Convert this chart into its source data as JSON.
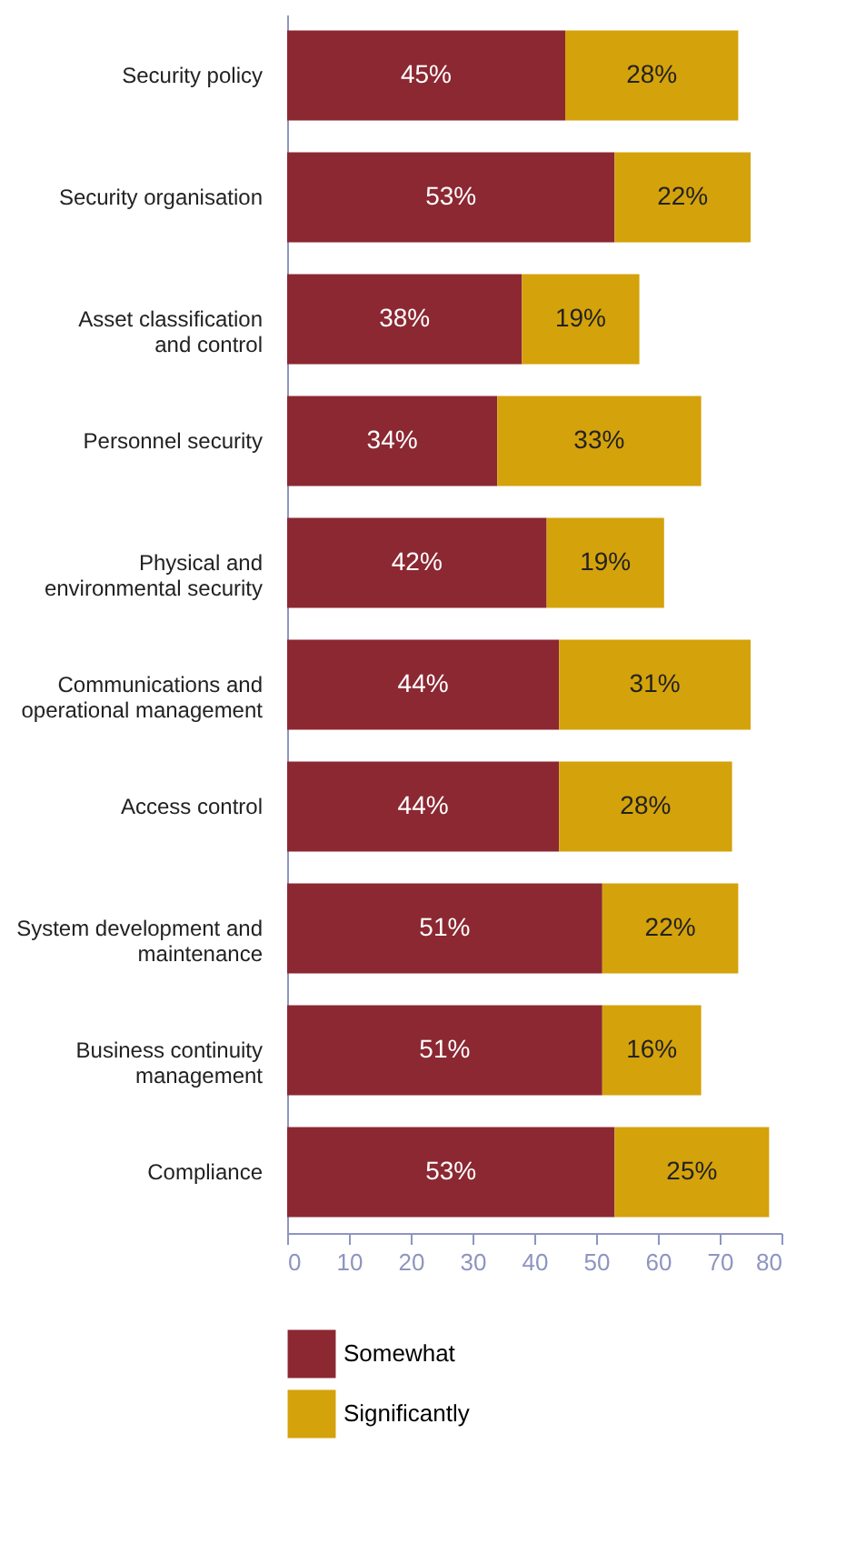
{
  "chart_data": {
    "type": "bar",
    "orientation": "horizontal",
    "stacked": true,
    "categories": [
      "Security policy",
      "Security organisation",
      "Asset classification and control",
      "Personnel security",
      "Physical and environmental security",
      "Communications and operational management",
      "Access control",
      "System development and maintenance",
      "Business continuity management",
      "Compliance"
    ],
    "series": [
      {
        "name": "Somewhat",
        "color": "#8b2832",
        "values": [
          45,
          53,
          38,
          34,
          42,
          44,
          44,
          51,
          51,
          53
        ],
        "value_labels": [
          "45%",
          "53%",
          "38%",
          "34%",
          "42%",
          "44%",
          "44%",
          "51%",
          "51%",
          "53%"
        ]
      },
      {
        "name": "Significantly",
        "color": "#d4a20a",
        "values": [
          28,
          22,
          19,
          33,
          19,
          31,
          28,
          22,
          16,
          25
        ],
        "value_labels": [
          "28%",
          "22%",
          "19%",
          "33%",
          "19%",
          "31%",
          "28%",
          "22%",
          "16%",
          "25%"
        ]
      }
    ],
    "xlim": [
      0,
      80
    ],
    "xticks": [
      0,
      10,
      20,
      30,
      40,
      50,
      60,
      70,
      80
    ],
    "grid": false,
    "legend": "bottom"
  }
}
